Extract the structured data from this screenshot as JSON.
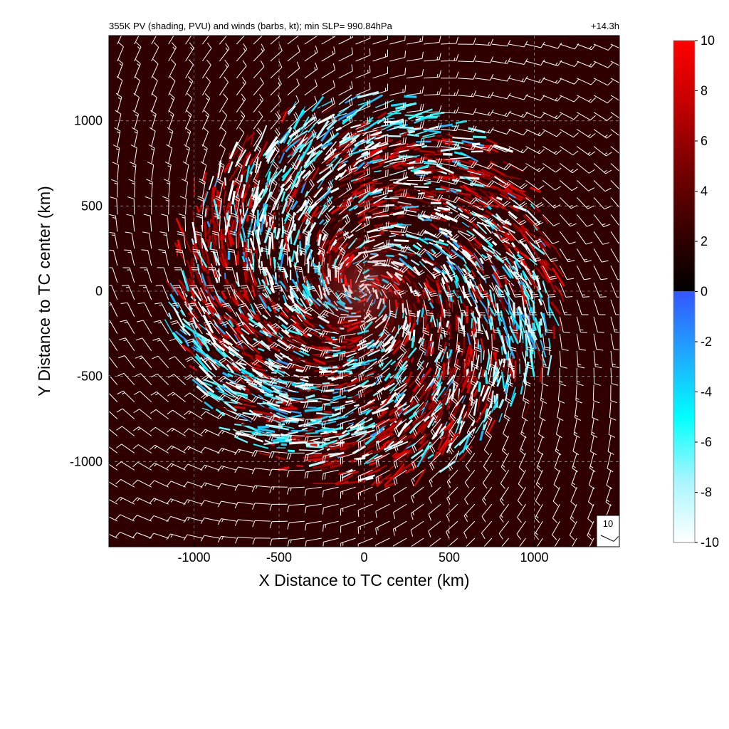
{
  "chart_data": {
    "type": "heatmap",
    "title": "355K PV (shading, PVU) and winds (barbs, kt); min SLP= 990.84hPa",
    "subtitle": "+14.3h",
    "xlabel": "X Distance to TC center (km)",
    "ylabel": "Y Distance to TC center (km)",
    "xlim": [
      -1500,
      1500
    ],
    "ylim": [
      -1500,
      1500
    ],
    "x_ticks": [
      -1000,
      -500,
      0,
      500,
      1000
    ],
    "y_ticks": [
      -1000,
      -500,
      0,
      500,
      1000
    ],
    "x_tick_labels": [
      "-1000",
      "-500",
      "0",
      "500",
      "1000"
    ],
    "y_tick_labels": [
      "-1000",
      "-500",
      "0",
      "500",
      "1000"
    ],
    "grid": true,
    "field": {
      "name": "355K PV",
      "units": "PVU",
      "background_value": 1.5,
      "disturbed_region_radius": 1100,
      "pattern": "spiral bands of alternating positive and negative PV around the TC center"
    },
    "colorbar": {
      "min": -10,
      "max": 10,
      "ticks": [
        10,
        8,
        6,
        4,
        2,
        0,
        -2,
        -4,
        -6,
        -8,
        -10
      ],
      "tick_labels": [
        "10",
        "8",
        "6",
        "4",
        "2",
        "0",
        "-2",
        "-4",
        "-6",
        "-8",
        "-10"
      ],
      "positive_colors": [
        "#000000",
        "#3a0000",
        "#7a0000",
        "#c40000",
        "#ff0000"
      ],
      "negative_colors": [
        "#3355ff",
        "#1fa8ff",
        "#00ffff",
        "#a6f5ff",
        "#ffffff"
      ]
    },
    "wind_barbs": {
      "units": "kt",
      "grid_spacing": 100,
      "outer_speed": 12,
      "inner_speed": 28,
      "color": "#ffffff"
    },
    "reference_barb": {
      "label": "10",
      "speed": 10
    }
  }
}
